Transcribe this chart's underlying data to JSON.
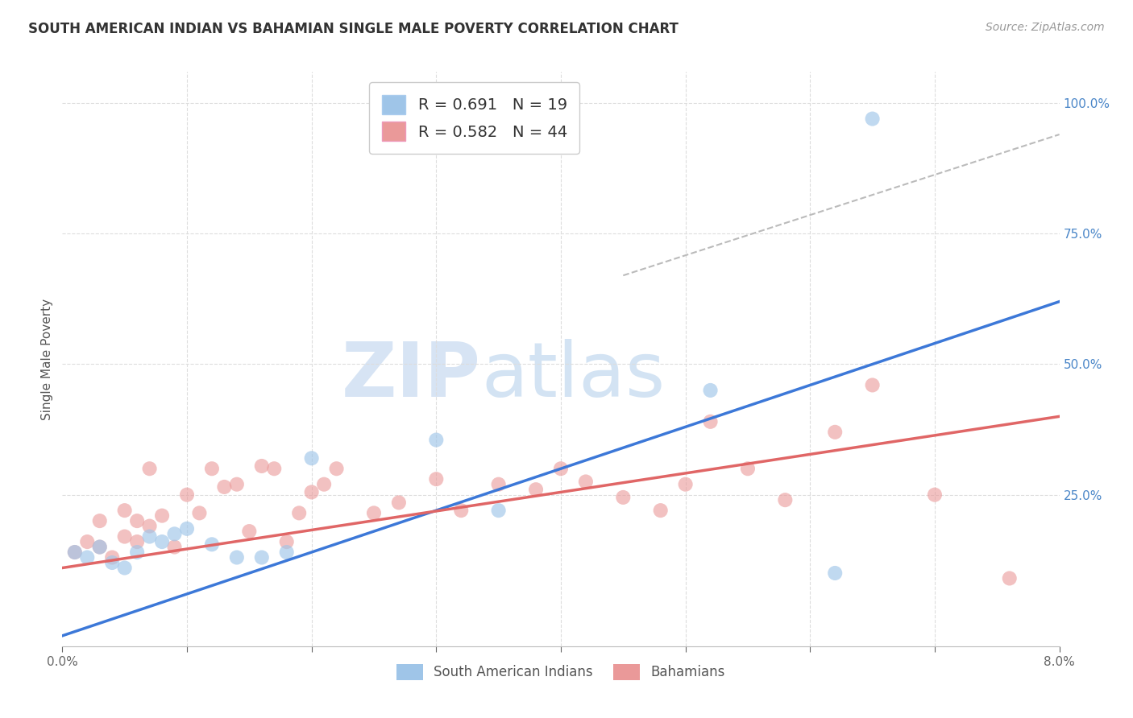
{
  "title": "SOUTH AMERICAN INDIAN VS BAHAMIAN SINGLE MALE POVERTY CORRELATION CHART",
  "source": "Source: ZipAtlas.com",
  "ylabel": "Single Male Poverty",
  "right_ytick_vals": [
    0.0,
    0.25,
    0.5,
    0.75,
    1.0
  ],
  "right_ytick_labels": [
    "",
    "25.0%",
    "50.0%",
    "75.0%",
    "100.0%"
  ],
  "xmin": 0.0,
  "xmax": 0.08,
  "ymin": -0.04,
  "ymax": 1.06,
  "legend_blue_r": "R = 0.691",
  "legend_blue_n": "N = 19",
  "legend_pink_r": "R = 0.582",
  "legend_pink_n": "N = 44",
  "blue_color": "#9fc5e8",
  "pink_color": "#ea9999",
  "blue_line_color": "#3c78d8",
  "pink_line_color": "#e06666",
  "watermark_zip": "ZIP",
  "watermark_atlas": "atlas",
  "blue_scatter_x": [
    0.001,
    0.002,
    0.003,
    0.004,
    0.005,
    0.006,
    0.007,
    0.008,
    0.009,
    0.01,
    0.012,
    0.014,
    0.016,
    0.018,
    0.02,
    0.03,
    0.035,
    0.052,
    0.062
  ],
  "blue_scatter_y": [
    0.14,
    0.13,
    0.15,
    0.12,
    0.11,
    0.14,
    0.17,
    0.16,
    0.175,
    0.185,
    0.155,
    0.13,
    0.13,
    0.14,
    0.32,
    0.355,
    0.22,
    0.45,
    0.1
  ],
  "blue_outlier_x": [
    0.065
  ],
  "blue_outlier_y": [
    0.97
  ],
  "pink_scatter_x": [
    0.001,
    0.002,
    0.003,
    0.003,
    0.004,
    0.005,
    0.005,
    0.006,
    0.006,
    0.007,
    0.007,
    0.008,
    0.009,
    0.01,
    0.011,
    0.012,
    0.013,
    0.014,
    0.015,
    0.016,
    0.017,
    0.018,
    0.019,
    0.02,
    0.021,
    0.022,
    0.025,
    0.027,
    0.03,
    0.032,
    0.035,
    0.038,
    0.04,
    0.042,
    0.045,
    0.048,
    0.05,
    0.052,
    0.055,
    0.058,
    0.062,
    0.065,
    0.07,
    0.076
  ],
  "pink_scatter_y": [
    0.14,
    0.16,
    0.15,
    0.2,
    0.13,
    0.22,
    0.17,
    0.2,
    0.16,
    0.3,
    0.19,
    0.21,
    0.15,
    0.25,
    0.215,
    0.3,
    0.265,
    0.27,
    0.18,
    0.305,
    0.3,
    0.16,
    0.215,
    0.255,
    0.27,
    0.3,
    0.215,
    0.235,
    0.28,
    0.22,
    0.27,
    0.26,
    0.3,
    0.275,
    0.245,
    0.22,
    0.27,
    0.39,
    0.3,
    0.24,
    0.37,
    0.46,
    0.25,
    0.09
  ],
  "blue_line_x": [
    0.0,
    0.08
  ],
  "blue_line_y": [
    -0.02,
    0.62
  ],
  "pink_line_x": [
    0.0,
    0.08
  ],
  "pink_line_y": [
    0.11,
    0.4
  ],
  "ref_line_x": [
    0.045,
    0.08
  ],
  "ref_line_y": [
    0.67,
    0.94
  ],
  "grid_yticks": [
    0.25,
    0.5,
    0.75,
    1.0
  ],
  "grid_xticks": [
    0.01,
    0.02,
    0.03,
    0.04,
    0.05,
    0.06,
    0.07
  ]
}
